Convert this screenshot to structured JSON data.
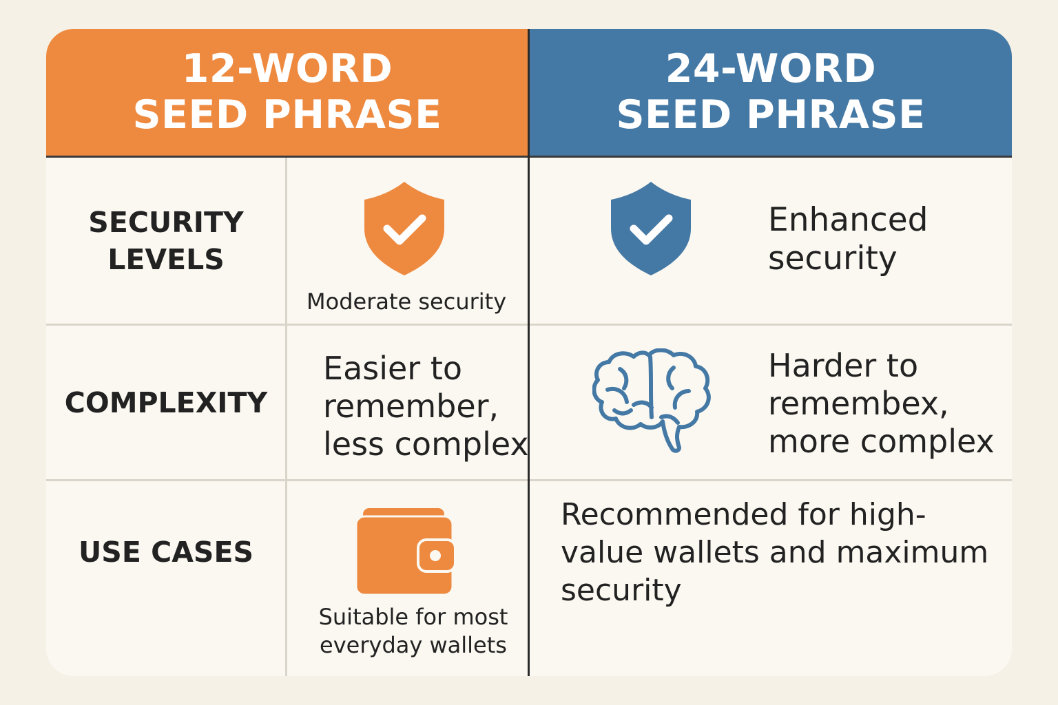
{
  "columns": {
    "left": {
      "title_line1": "12-WORD",
      "title_line2": "SEED PHRASE",
      "color": "#ee8a3f"
    },
    "right": {
      "title_line1": "24-WORD",
      "title_line2": "SEED PHRASE",
      "color": "#4579a5"
    }
  },
  "rows": {
    "security": {
      "label_line1": "SECURITY",
      "label_line2": "LEVELS",
      "left_text": "Moderate security",
      "left_icon": "shield-check-icon",
      "right_icon": "shield-check-icon",
      "right_line1": "Enhanced",
      "right_line2": "security"
    },
    "complexity": {
      "label": "COMPLEXITY",
      "left_line1": "Easier to",
      "left_line2": "remember,",
      "left_line3": "less complex",
      "right_icon": "brain-icon",
      "right_line1": "Harder to",
      "right_line2": "remembex,",
      "right_line3": "more complex"
    },
    "use_cases": {
      "label": "USE CASES",
      "left_icon": "wallet-icon",
      "left_line1": "Suitable for most",
      "left_line2": "everyday wallets",
      "right_line1": "Recommended for high-",
      "right_line2": "value wallets and maximum",
      "right_line3": "security"
    }
  }
}
